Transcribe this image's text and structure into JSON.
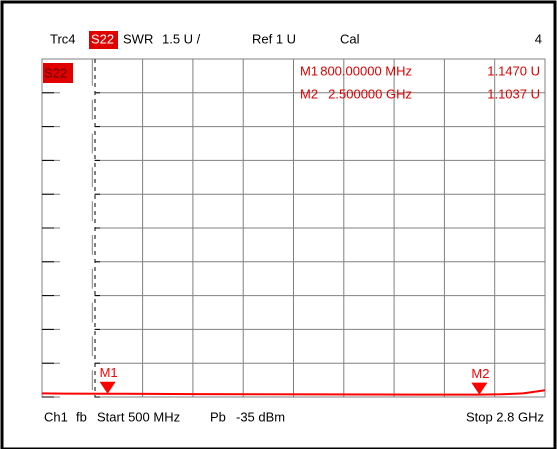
{
  "chart_data": {
    "type": "line",
    "header": {
      "trace": "Trc4",
      "param": "S22",
      "format": "SWR",
      "scale": "1.5 U /",
      "ref": "Ref 1 U",
      "cal": "Cal",
      "number": "4"
    },
    "footer": {
      "channel": "Ch1",
      "mode": "fb",
      "start": "Start 500 MHz",
      "power_label": "Pb",
      "power": "-35 dBm",
      "stop": "Stop 2.8 GHz"
    },
    "xlim": [
      0.5,
      2.8
    ],
    "ylim": [
      1,
      16
    ],
    "yticks": [
      {
        "value": 1,
        "label": "1.0"
      },
      2.5,
      4,
      5.5,
      7,
      8.5,
      10,
      11.5,
      13,
      14.5
    ],
    "grid": true,
    "series": [
      {
        "name": "S22",
        "color": "#ff0000",
        "x": [
          0.5,
          0.6,
          0.8,
          1.0,
          1.2,
          1.5,
          1.8,
          2.0,
          2.2,
          2.5,
          2.6,
          2.7,
          2.8
        ],
        "values": [
          1.16,
          1.15,
          1.147,
          1.14,
          1.13,
          1.12,
          1.115,
          1.11,
          1.105,
          1.104,
          1.12,
          1.16,
          1.3
        ]
      }
    ],
    "markers": [
      {
        "name": "M1",
        "x": 0.8,
        "x_label": "800.00000 MHz",
        "value": 1.147,
        "value_label": "1.1470 U"
      },
      {
        "name": "M2",
        "x": 2.5,
        "x_label": "2.500000 GHz",
        "value": 1.1037,
        "value_label": "1.1037 U"
      }
    ]
  }
}
